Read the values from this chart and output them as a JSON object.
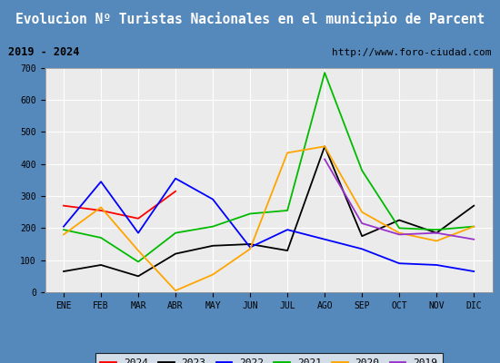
{
  "title": "Evolucion Nº Turistas Nacionales en el municipio de Parcent",
  "subtitle_left": "2019 - 2024",
  "subtitle_right": "http://www.foro-ciudad.com",
  "months": [
    "ENE",
    "FEB",
    "MAR",
    "ABR",
    "MAY",
    "JUN",
    "JUL",
    "AGO",
    "SEP",
    "OCT",
    "NOV",
    "DIC"
  ],
  "series": {
    "2024": {
      "color": "#ff0000",
      "data": [
        270,
        255,
        230,
        315,
        null,
        null,
        null,
        null,
        null,
        null,
        null,
        null
      ]
    },
    "2023": {
      "color": "#000000",
      "data": [
        65,
        85,
        50,
        120,
        145,
        150,
        130,
        455,
        175,
        225,
        185,
        270
      ]
    },
    "2022": {
      "color": "#0000ff",
      "data": [
        205,
        345,
        185,
        355,
        290,
        140,
        195,
        null,
        135,
        90,
        85,
        65
      ]
    },
    "2021": {
      "color": "#00bb00",
      "data": [
        195,
        170,
        95,
        185,
        205,
        245,
        255,
        685,
        380,
        200,
        195,
        205
      ]
    },
    "2020": {
      "color": "#ffa500",
      "data": [
        180,
        265,
        130,
        5,
        55,
        135,
        435,
        455,
        250,
        185,
        160,
        205
      ]
    },
    "2019": {
      "color": "#9933cc",
      "data": [
        null,
        null,
        null,
        null,
        null,
        null,
        null,
        415,
        215,
        180,
        185,
        165
      ]
    }
  },
  "ylim": [
    0,
    700
  ],
  "yticks": [
    0,
    100,
    200,
    300,
    400,
    500,
    600,
    700
  ],
  "title_bg_color": "#4f8fc0",
  "title_text_color": "#ffffff",
  "subtitle_bg_color": "#e8e8e8",
  "plot_bg_color": "#ebebeb",
  "outer_bg_color": "#5588bb",
  "grid_color": "#ffffff",
  "legend_order": [
    "2024",
    "2023",
    "2022",
    "2021",
    "2020",
    "2019"
  ]
}
